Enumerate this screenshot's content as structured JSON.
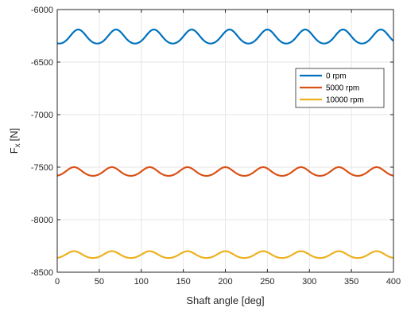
{
  "chart_data": {
    "type": "line",
    "xlabel": "Shaft angle [deg]",
    "ylabel": "F",
    "ylabel_subscript": "x",
    "ylabel_unit": "[N]",
    "xlim": [
      0,
      400
    ],
    "ylim": [
      -8500,
      -6000
    ],
    "xticks": [
      0,
      50,
      100,
      150,
      200,
      250,
      300,
      350,
      400
    ],
    "yticks": [
      -6000,
      -6500,
      -7000,
      -7500,
      -8000,
      -8500
    ],
    "grid": true,
    "legend_position": "upper-right",
    "series": [
      {
        "name": "0   rpm",
        "color": "#0072BD",
        "mean": -6262.5,
        "amplitude": 72.5,
        "period_deg": 45,
        "peak_x": 25
      },
      {
        "name": "5000   rpm",
        "color": "#D95319",
        "mean": -7545,
        "amplitude": 45,
        "period_deg": 45,
        "peak_x": 20
      },
      {
        "name": "10000   rpm",
        "color": "#EDB120",
        "mean": -8335,
        "amplitude": 35,
        "period_deg": 45,
        "peak_x": 20
      }
    ]
  }
}
